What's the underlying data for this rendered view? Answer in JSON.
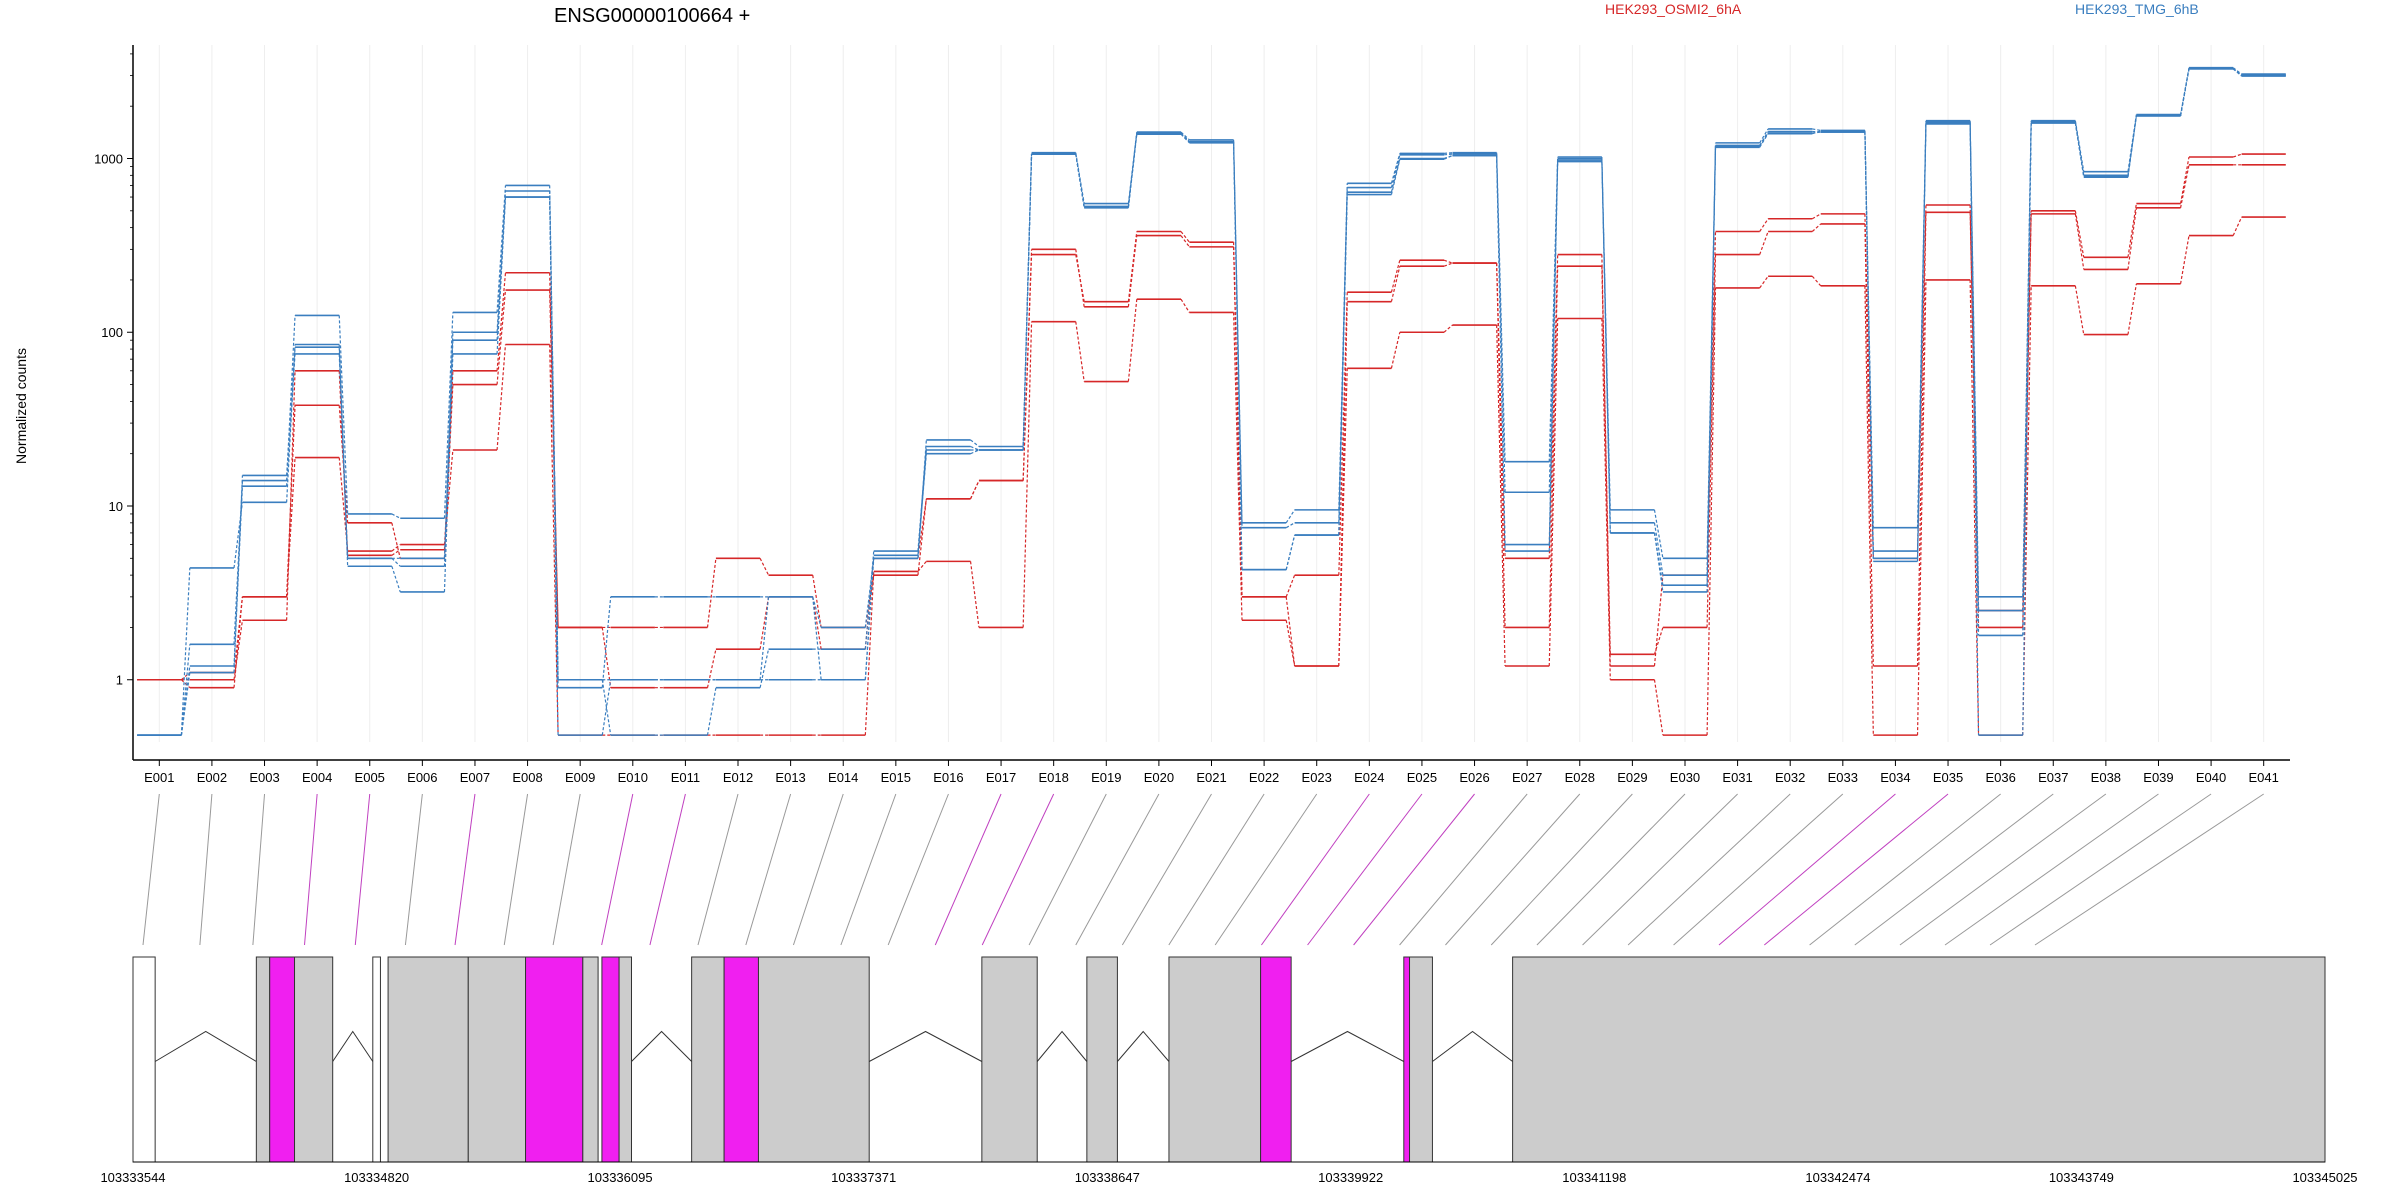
{
  "chart_data": {
    "type": "line",
    "title": "ENSG00000100664 +",
    "ylabel": "Normalized counts",
    "yscale": "log",
    "ylim": [
      0.45,
      4500
    ],
    "yticks": [
      {
        "value": 1,
        "label": "1"
      },
      {
        "value": 10,
        "label": "10"
      },
      {
        "value": 100,
        "label": "100"
      },
      {
        "value": 1000,
        "label": "1000"
      }
    ],
    "grid": "vertical",
    "legend_placement": "top-right",
    "colors": {
      "red": "#d62728",
      "blue": "#3a7ebf",
      "highlight": "#f01ff0",
      "exon": "#cccccc"
    },
    "categories": [
      "E001",
      "E002",
      "E003",
      "E004",
      "E005",
      "E006",
      "E007",
      "E008",
      "E009",
      "E010",
      "E011",
      "E012",
      "E013",
      "E014",
      "E015",
      "E016",
      "E017",
      "E018",
      "E019",
      "E020",
      "E021",
      "E022",
      "E023",
      "E024",
      "E025",
      "E026",
      "E027",
      "E028",
      "E029",
      "E030",
      "E031",
      "E032",
      "E033",
      "E034",
      "E035",
      "E036",
      "E037",
      "E038",
      "E039",
      "E040",
      "E041"
    ],
    "series": [
      {
        "name": "HEK293_OSMI2_6hA",
        "color": "red",
        "values": [
          1,
          1,
          2.2,
          60,
          5.2,
          5.6,
          60,
          220,
          2,
          2,
          2,
          5,
          4,
          2,
          4,
          11,
          14,
          300,
          140,
          360,
          310,
          3,
          4,
          170,
          260,
          250,
          5,
          280,
          1.2,
          4,
          380,
          450,
          480,
          5,
          540,
          2,
          500,
          270,
          550,
          1020,
          1060
        ]
      },
      {
        "name": "",
        "color": "red",
        "values": [
          1,
          0.9,
          3,
          38,
          8,
          5,
          50,
          175,
          2,
          0.9,
          0.9,
          1.5,
          3,
          1.5,
          5,
          11,
          14,
          280,
          150,
          380,
          330,
          3,
          1.2,
          150,
          240,
          250,
          2,
          240,
          1.4,
          2,
          280,
          380,
          420,
          1.2,
          490,
          2.5,
          480,
          230,
          520,
          920,
          920
        ]
      },
      {
        "name": "",
        "color": "red",
        "values": [
          1,
          1.1,
          3,
          19,
          5.5,
          6,
          21,
          85,
          0.48,
          0.48,
          0.48,
          0.48,
          0.48,
          0.48,
          4.2,
          4.8,
          2,
          115,
          52,
          155,
          130,
          2.2,
          1.2,
          62,
          100,
          110,
          1.2,
          120,
          1,
          0.48,
          180,
          210,
          185,
          0.48,
          200,
          0.48,
          185,
          97,
          190,
          360,
          460
        ]
      },
      {
        "name": "HEK293_TMG_6hB",
        "color": "blue",
        "values": [
          0.48,
          1.6,
          14,
          125,
          9,
          8.5,
          130,
          700,
          0.9,
          3,
          3,
          3,
          3,
          2,
          5,
          24,
          22,
          1080,
          550,
          1420,
          1280,
          8,
          9.5,
          720,
          1070,
          1080,
          18,
          1000,
          9.5,
          5,
          1230,
          1480,
          1450,
          7.5,
          1650,
          3,
          1650,
          840,
          1790,
          3330,
          3060
        ]
      },
      {
        "name": "",
        "color": "blue",
        "values": [
          0.48,
          1.2,
          13,
          75,
          5,
          4.5,
          100,
          650,
          1,
          0.48,
          0.48,
          0.9,
          1.5,
          1.5,
          5.5,
          22,
          21,
          1060,
          520,
          1380,
          1230,
          7.5,
          8,
          680,
          1050,
          1060,
          12,
          1020,
          8,
          4,
          1190,
          1430,
          1420,
          5.5,
          1620,
          2.5,
          1620,
          800,
          1760,
          3280,
          3020
        ]
      },
      {
        "name": "",
        "color": "blue",
        "values": [
          0.48,
          4.4,
          10.5,
          82,
          4.5,
          3.2,
          75,
          600,
          1,
          1,
          1,
          1,
          3,
          1,
          5.2,
          20,
          21,
          1060,
          530,
          1400,
          1250,
          4.3,
          6.8,
          620,
          990,
          1040,
          5.5,
          960,
          7,
          3.5,
          1160,
          1390,
          1440,
          4.8,
          1580,
          1.8,
          1600,
          780,
          1760,
          3280,
          2980
        ]
      },
      {
        "name": "",
        "color": "blue",
        "values": [
          0.48,
          1.1,
          15,
          85,
          5,
          5,
          90,
          600,
          0.48,
          1,
          1,
          1,
          1,
          1,
          5,
          21,
          21,
          1060,
          525,
          1390,
          1250,
          4.3,
          6.8,
          640,
          1000,
          1040,
          6,
          980,
          7,
          3.2,
          1180,
          1400,
          1420,
          5,
          1600,
          0.48,
          1610,
          790,
          1760,
          3290,
          3000
        ]
      }
    ],
    "exon_links": {
      "magenta_exons": [
        "E004",
        "E005",
        "E007",
        "E010",
        "E011",
        "E017",
        "E018",
        "E024",
        "E025",
        "E026",
        "E034",
        "E035"
      ]
    },
    "gene_model": {
      "coordinate_ticks": [
        "103333544",
        "103334820",
        "103336095",
        "103337371",
        "103338647",
        "103339922",
        "103341198",
        "103342474",
        "103343749",
        "103345025"
      ],
      "exon_blocks": [
        {
          "start": 103333544,
          "end": 103333660,
          "fill": "white"
        },
        {
          "start": 103334190,
          "end": 103334260,
          "fill": "gray"
        },
        {
          "start": 103334260,
          "end": 103334390,
          "fill": "magenta"
        },
        {
          "start": 103334390,
          "end": 103334590,
          "fill": "gray"
        },
        {
          "start": 103334800,
          "end": 103334840,
          "fill": "white"
        },
        {
          "start": 103334880,
          "end": 103335300,
          "fill": "gray"
        },
        {
          "start": 103335300,
          "end": 103335600,
          "fill": "gray"
        },
        {
          "start": 103335600,
          "end": 103335900,
          "fill": "magenta"
        },
        {
          "start": 103335900,
          "end": 103335980,
          "fill": "gray"
        },
        {
          "start": 103336000,
          "end": 103336090,
          "fill": "magenta"
        },
        {
          "start": 103336090,
          "end": 103336155,
          "fill": "gray"
        },
        {
          "start": 103336470,
          "end": 103336640,
          "fill": "gray"
        },
        {
          "start": 103336640,
          "end": 103336820,
          "fill": "magenta"
        },
        {
          "start": 103336820,
          "end": 103337400,
          "fill": "gray"
        },
        {
          "start": 103337990,
          "end": 103338280,
          "fill": "gray"
        },
        {
          "start": 103338540,
          "end": 103338700,
          "fill": "gray"
        },
        {
          "start": 103338970,
          "end": 103339450,
          "fill": "gray"
        },
        {
          "start": 103339450,
          "end": 103339610,
          "fill": "magenta"
        },
        {
          "start": 103340200,
          "end": 103340230,
          "fill": "magenta"
        },
        {
          "start": 103340230,
          "end": 103340350,
          "fill": "gray"
        },
        {
          "start": 103340770,
          "end": 103345025,
          "fill": "gray"
        }
      ]
    }
  },
  "legend": [
    {
      "label": "HEK293_OSMI2_6hA",
      "color": "#d62728"
    },
    {
      "label": "HEK293_TMG_6hB",
      "color": "#3a7ebf"
    }
  ]
}
